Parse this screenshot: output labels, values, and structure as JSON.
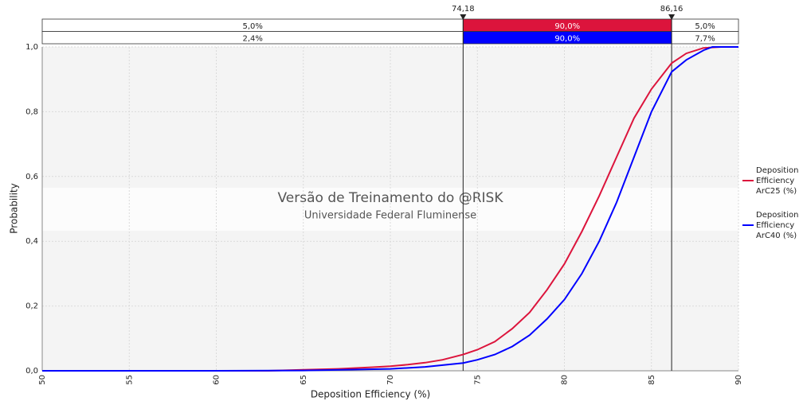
{
  "chart_data": {
    "type": "line",
    "xlabel": "Deposition Efficiency (%)",
    "ylabel": "Probability",
    "watermark": [
      "Versão de Treinamento do @RISK",
      "Universidade Federal Fluminense"
    ],
    "xlim": [
      50,
      90
    ],
    "xticks": [
      50,
      55,
      60,
      65,
      70,
      75,
      80,
      85,
      90
    ],
    "ylim": [
      0,
      1
    ],
    "yticks": [
      {
        "value": 0,
        "label": "0,0"
      },
      {
        "value": 0.2,
        "label": "0,2"
      },
      {
        "value": 0.4,
        "label": "0,4"
      },
      {
        "value": 0.6,
        "label": "0,6"
      },
      {
        "value": 0.8,
        "label": "0,8"
      },
      {
        "value": 1,
        "label": "1,0"
      }
    ],
    "grid": true,
    "delimiters": [
      {
        "value": 74.18,
        "label": "74,18"
      },
      {
        "value": 86.16,
        "label": "86,16"
      }
    ],
    "series": [
      {
        "name": "Deposition Efficiency ArC25 (%)",
        "color": "#dc143c",
        "band_labels": [
          {
            "value": 5,
            "label": "5,0%"
          },
          {
            "value": 90,
            "label": "90,0%"
          },
          {
            "value": 5,
            "label": "5,0%"
          }
        ],
        "x": [
          50,
          60,
          63,
          65,
          67,
          69,
          70,
          71,
          72,
          73,
          74.18,
          75,
          76,
          77,
          78,
          79,
          80,
          81,
          82,
          83,
          84,
          85,
          86.16,
          87,
          88,
          89,
          90
        ],
        "values": [
          0,
          0,
          0,
          0.003,
          0.006,
          0.011,
          0.014,
          0.019,
          0.025,
          0.034,
          0.05,
          0.065,
          0.09,
          0.13,
          0.18,
          0.25,
          0.33,
          0.43,
          0.54,
          0.66,
          0.78,
          0.87,
          0.95,
          0.98,
          0.997,
          1,
          1
        ]
      },
      {
        "name": "Deposition Efficiency ArC40 (%)",
        "color": "#0000ff",
        "band_labels": [
          {
            "value": 2.4,
            "label": "2,4%"
          },
          {
            "value": 90,
            "label": "90,0%"
          },
          {
            "value": 7.7,
            "label": "7,7%"
          }
        ],
        "x": [
          50,
          60,
          65,
          70,
          72,
          74.18,
          75,
          76,
          77,
          78,
          79,
          80,
          81,
          82,
          83,
          84,
          85,
          86.16,
          87,
          88,
          88.5,
          90
        ],
        "values": [
          0,
          0,
          0.001,
          0.006,
          0.012,
          0.024,
          0.034,
          0.05,
          0.075,
          0.11,
          0.16,
          0.22,
          0.3,
          0.4,
          0.52,
          0.66,
          0.8,
          0.923,
          0.96,
          0.99,
          1,
          1
        ]
      }
    ]
  }
}
